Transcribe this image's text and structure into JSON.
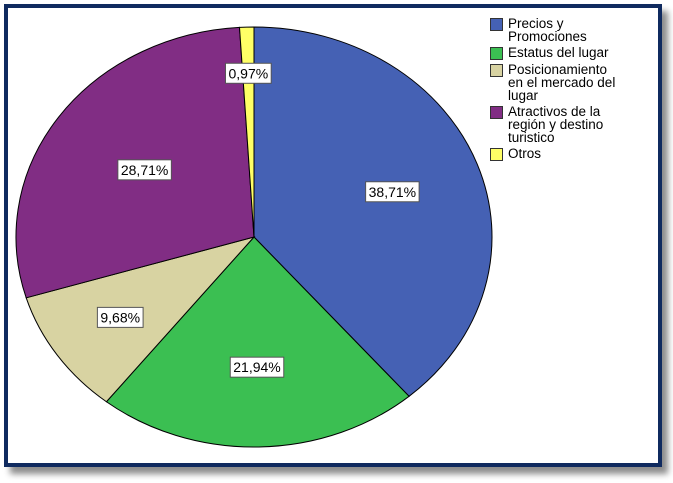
{
  "chart_data": {
    "type": "pie",
    "categories": [
      "Precios y Promociones",
      "Estatus del lugar",
      "Posicionamiento en el mercado del lugar",
      "Atractivos de la región y destino turistico",
      "Otros"
    ],
    "values": [
      38.71,
      21.94,
      9.68,
      28.71,
      0.97
    ],
    "data_labels": [
      "38,71%",
      "21,94%",
      "9,68%",
      "28,71%",
      "0,97%"
    ],
    "colors": [
      "#4561b4",
      "#3bbf52",
      "#d8d3a2",
      "#812d84",
      "#ffff66"
    ],
    "legend_placement": "top-right",
    "start_angle_deg": 0,
    "direction": "clockwise"
  },
  "legend": {
    "items": [
      {
        "lines": [
          "Precios y",
          "Promociones"
        ],
        "color": "#4561b4"
      },
      {
        "lines": [
          "Estatus del lugar"
        ],
        "color": "#3bbf52"
      },
      {
        "lines": [
          "Posicionamiento",
          "en el mercado del",
          "lugar"
        ],
        "color": "#d8d3a2"
      },
      {
        "lines": [
          "Atractivos de la",
          "región y destino",
          "turistico"
        ],
        "color": "#812d84"
      },
      {
        "lines": [
          "Otros"
        ],
        "color": "#ffff66"
      }
    ]
  }
}
